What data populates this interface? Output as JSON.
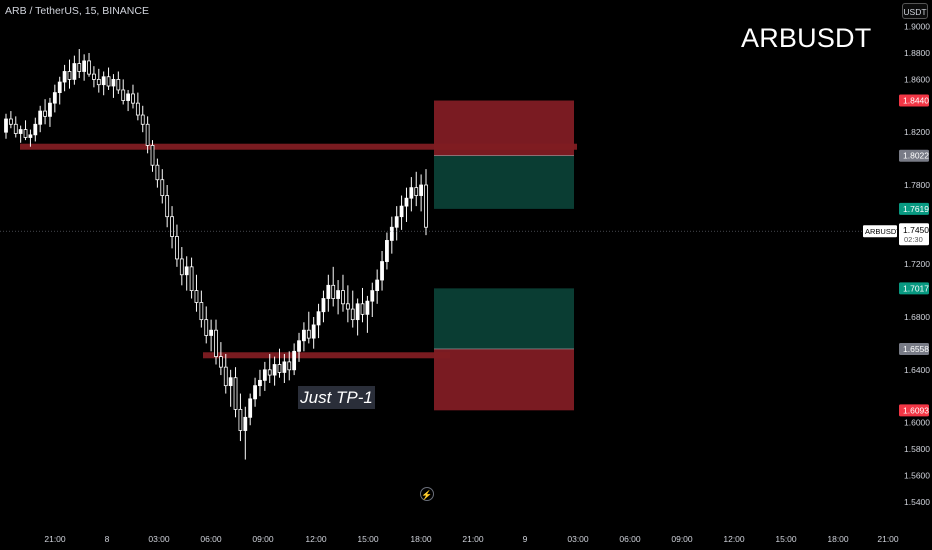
{
  "header": {
    "symbol_line": "ARB / TetherUS, 15, BINANCE"
  },
  "currency_button": "USDT",
  "watermark": "ARBUSDT",
  "annotation": "Just TP-1",
  "icons": {
    "replay": "lightning-bolt-icon"
  },
  "colors": {
    "background": "#000000",
    "candle_up": "#ffffff",
    "candle_down": "#ffffff",
    "stop_zone": "#7a1b22",
    "target_zone": "#0a3d33",
    "horizontal_line": "#7f1c22",
    "price_tag_red": "#f23645",
    "price_tag_green": "#089981",
    "price_tag_gray": "#787b86"
  },
  "chart_data": {
    "type": "candlestick",
    "symbol": "ARBUSDT",
    "interval": "15",
    "exchange": "BINANCE",
    "y_ticks": [
      "1.9000",
      "1.8800",
      "1.8600",
      "1.8440",
      "1.8200",
      "1.8022",
      "1.7800",
      "1.7619",
      "1.7450",
      "1.7200",
      "1.7017",
      "1.6800",
      "1.6558",
      "1.6400",
      "1.6093",
      "1.6000",
      "1.5800",
      "1.5600",
      "1.5400"
    ],
    "ylim": [
      1.53,
      1.905
    ],
    "x_ticks": [
      "21:00",
      "8",
      "03:00",
      "06:00",
      "09:00",
      "12:00",
      "15:00",
      "18:00",
      "21:00",
      "9",
      "03:00",
      "06:00",
      "09:00",
      "12:00",
      "15:00",
      "18:00",
      "21:00"
    ],
    "price_tags": [
      {
        "value": "1.8440",
        "color": "red"
      },
      {
        "value": "1.8022",
        "color": "gray"
      },
      {
        "value": "1.7619",
        "color": "green"
      },
      {
        "value": "1.7017",
        "color": "green"
      },
      {
        "value": "1.6558",
        "color": "gray"
      },
      {
        "value": "1.6093",
        "color": "red"
      }
    ],
    "current_price": {
      "symbol": "ARBUSDT",
      "value": "1.7450",
      "countdown": "02:30"
    },
    "horizontal_lines": [
      1.809,
      1.651
    ],
    "short_position": {
      "entry": 1.8022,
      "stop": 1.844,
      "target": 1.7619
    },
    "long_position": {
      "entry": 1.6558,
      "stop": 1.6093,
      "target": 1.7017
    },
    "candles": [
      [
        1.82,
        1.834,
        1.815,
        1.83
      ],
      [
        1.83,
        1.836,
        1.823,
        1.826
      ],
      [
        1.826,
        1.832,
        1.816,
        1.819
      ],
      [
        1.819,
        1.825,
        1.812,
        1.822
      ],
      [
        1.822,
        1.829,
        1.814,
        1.816
      ],
      [
        1.816,
        1.822,
        1.809,
        1.818
      ],
      [
        1.818,
        1.831,
        1.813,
        1.826
      ],
      [
        1.826,
        1.84,
        1.82,
        1.836
      ],
      [
        1.836,
        1.845,
        1.826,
        1.832
      ],
      [
        1.832,
        1.846,
        1.824,
        1.842
      ],
      [
        1.842,
        1.856,
        1.835,
        1.85
      ],
      [
        1.85,
        1.862,
        1.841,
        1.858
      ],
      [
        1.858,
        1.871,
        1.851,
        1.866
      ],
      [
        1.866,
        1.875,
        1.853,
        1.86
      ],
      [
        1.86,
        1.878,
        1.856,
        1.872
      ],
      [
        1.872,
        1.883,
        1.861,
        1.866
      ],
      [
        1.866,
        1.879,
        1.859,
        1.874
      ],
      [
        1.874,
        1.88,
        1.862,
        1.864
      ],
      [
        1.864,
        1.87,
        1.854,
        1.86
      ],
      [
        1.86,
        1.868,
        1.85,
        1.856
      ],
      [
        1.856,
        1.866,
        1.848,
        1.862
      ],
      [
        1.862,
        1.869,
        1.852,
        1.855
      ],
      [
        1.855,
        1.864,
        1.846,
        1.86
      ],
      [
        1.86,
        1.866,
        1.849,
        1.852
      ],
      [
        1.852,
        1.86,
        1.841,
        1.844
      ],
      [
        1.844,
        1.852,
        1.836,
        1.849
      ],
      [
        1.849,
        1.856,
        1.838,
        1.842
      ],
      [
        1.842,
        1.85,
        1.829,
        1.833
      ],
      [
        1.833,
        1.84,
        1.82,
        1.826
      ],
      [
        1.826,
        1.832,
        1.804,
        1.81
      ],
      [
        1.81,
        1.814,
        1.79,
        1.795
      ],
      [
        1.795,
        1.8,
        1.778,
        1.784
      ],
      [
        1.784,
        1.792,
        1.766,
        1.772
      ],
      [
        1.772,
        1.78,
        1.748,
        1.756
      ],
      [
        1.756,
        1.764,
        1.732,
        1.741
      ],
      [
        1.741,
        1.75,
        1.718,
        1.724
      ],
      [
        1.724,
        1.733,
        1.704,
        1.712
      ],
      [
        1.712,
        1.726,
        1.7,
        1.718
      ],
      [
        1.718,
        1.725,
        1.694,
        1.7
      ],
      [
        1.7,
        1.712,
        1.684,
        1.691
      ],
      [
        1.691,
        1.7,
        1.672,
        1.678
      ],
      [
        1.678,
        1.688,
        1.66,
        1.666
      ],
      [
        1.666,
        1.678,
        1.654,
        1.67
      ],
      [
        1.67,
        1.678,
        1.644,
        1.65
      ],
      [
        1.65,
        1.661,
        1.636,
        1.642
      ],
      [
        1.642,
        1.652,
        1.622,
        1.628
      ],
      [
        1.628,
        1.64,
        1.612,
        1.634
      ],
      [
        1.634,
        1.642,
        1.604,
        1.61
      ],
      [
        1.61,
        1.622,
        1.586,
        1.594
      ],
      [
        1.594,
        1.612,
        1.572,
        1.604
      ],
      [
        1.604,
        1.622,
        1.598,
        1.618
      ],
      [
        1.618,
        1.634,
        1.612,
        1.628
      ],
      [
        1.628,
        1.64,
        1.62,
        1.632
      ],
      [
        1.632,
        1.646,
        1.624,
        1.64
      ],
      [
        1.64,
        1.652,
        1.63,
        1.636
      ],
      [
        1.636,
        1.65,
        1.628,
        1.644
      ],
      [
        1.644,
        1.656,
        1.634,
        1.638
      ],
      [
        1.638,
        1.652,
        1.63,
        1.646
      ],
      [
        1.646,
        1.654,
        1.632,
        1.64
      ],
      [
        1.64,
        1.66,
        1.636,
        1.654
      ],
      [
        1.654,
        1.668,
        1.646,
        1.662
      ],
      [
        1.662,
        1.676,
        1.654,
        1.67
      ],
      [
        1.67,
        1.684,
        1.66,
        1.664
      ],
      [
        1.664,
        1.68,
        1.656,
        1.674
      ],
      [
        1.674,
        1.69,
        1.664,
        1.684
      ],
      [
        1.684,
        1.7,
        1.676,
        1.694
      ],
      [
        1.694,
        1.712,
        1.684,
        1.704
      ],
      [
        1.704,
        1.718,
        1.688,
        1.694
      ],
      [
        1.694,
        1.708,
        1.682,
        1.7
      ],
      [
        1.7,
        1.712,
        1.684,
        1.69
      ],
      [
        1.69,
        1.704,
        1.676,
        1.686
      ],
      [
        1.686,
        1.7,
        1.672,
        1.678
      ],
      [
        1.678,
        1.694,
        1.666,
        1.69
      ],
      [
        1.69,
        1.702,
        1.676,
        1.682
      ],
      [
        1.682,
        1.696,
        1.668,
        1.692
      ],
      [
        1.692,
        1.706,
        1.68,
        1.7
      ],
      [
        1.7,
        1.716,
        1.69,
        1.708
      ],
      [
        1.708,
        1.73,
        1.7,
        1.722
      ],
      [
        1.722,
        1.744,
        1.716,
        1.738
      ],
      [
        1.738,
        1.756,
        1.728,
        1.748
      ],
      [
        1.748,
        1.764,
        1.738,
        1.756
      ],
      [
        1.756,
        1.772,
        1.746,
        1.764
      ],
      [
        1.764,
        1.778,
        1.752,
        1.77
      ],
      [
        1.77,
        1.786,
        1.76,
        1.778
      ],
      [
        1.778,
        1.79,
        1.764,
        1.772
      ],
      [
        1.772,
        1.788,
        1.76,
        1.78
      ],
      [
        1.78,
        1.792,
        1.742,
        1.748
      ]
    ]
  }
}
